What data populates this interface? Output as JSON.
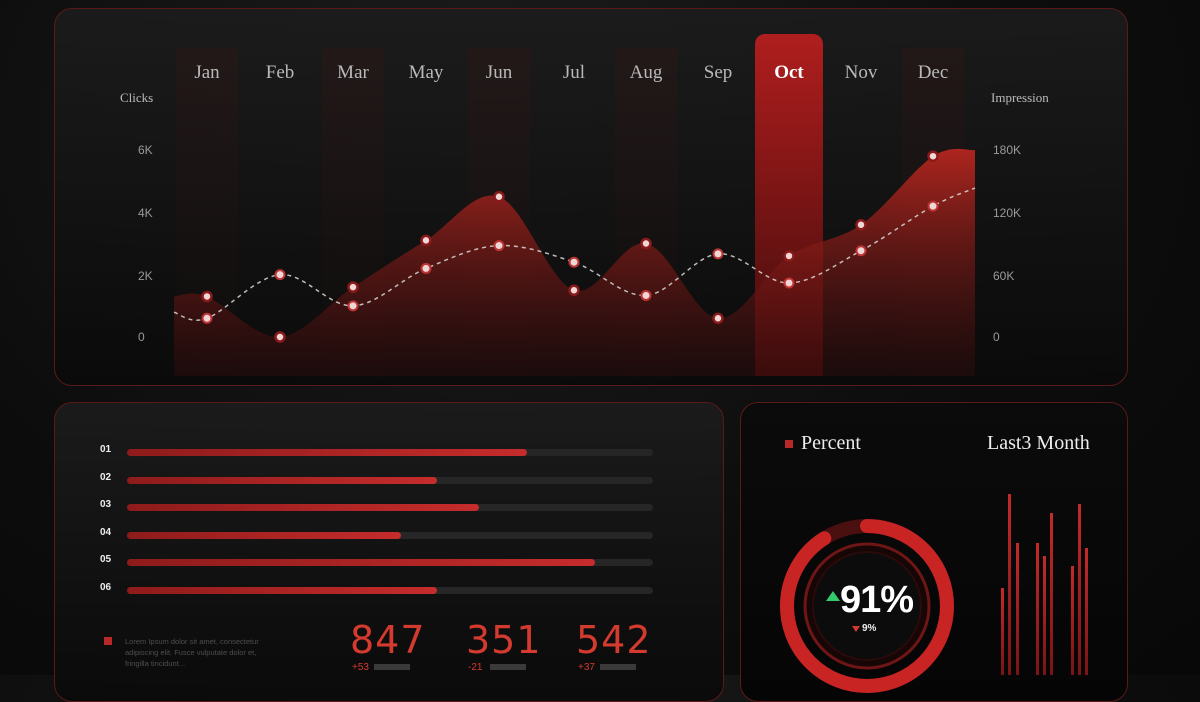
{
  "top_chart": {
    "months": [
      "Jan",
      "Feb",
      "Mar",
      "May",
      "Jun",
      "Jul",
      "Aug",
      "Sep",
      "Oct",
      "Nov",
      "Dec"
    ],
    "active_month": "Oct",
    "left_axis_label": "Clicks",
    "right_axis_label": "Impression",
    "left_ticks": [
      "6K",
      "4K",
      "2K",
      "0"
    ],
    "right_ticks": [
      "180K",
      "120K",
      "60K",
      "0"
    ]
  },
  "chart_data": {
    "type": "area",
    "categories": [
      "Jan",
      "Feb",
      "Mar",
      "May",
      "Jun",
      "Jul",
      "Aug",
      "Sep",
      "Oct",
      "Nov",
      "Dec"
    ],
    "series": [
      {
        "name": "Clicks",
        "axis": "left",
        "values": [
          1300,
          0,
          1600,
          3100,
          4500,
          1500,
          3000,
          600,
          2600,
          3600,
          5800
        ]
      },
      {
        "name": "Impression",
        "axis": "right",
        "values": [
          18000,
          60000,
          30000,
          66000,
          88000,
          72000,
          40000,
          80000,
          52000,
          83000,
          126000
        ]
      }
    ],
    "ylim_left": [
      0,
      6000
    ],
    "ylim_right": [
      0,
      180000
    ],
    "colors": {
      "area": "#b5261f",
      "line": "#d9d9d9",
      "accent": "#b01e1e"
    }
  },
  "progress_bars": [
    {
      "label": "01",
      "value": 0.76
    },
    {
      "label": "02",
      "value": 0.59
    },
    {
      "label": "03",
      "value": 0.67
    },
    {
      "label": "04",
      "value": 0.52
    },
    {
      "label": "05",
      "value": 0.89
    },
    {
      "label": "06",
      "value": 0.59
    }
  ],
  "lorem_text": "Lorem Ipsum dolor sit amet, consectetur adipiscing elit. Fusce vulputate dolor et, fringilla tincidunt...",
  "stats": [
    {
      "value": "847",
      "delta": "+53"
    },
    {
      "value": "351",
      "delta": "-21"
    },
    {
      "value": "542",
      "delta": "+37"
    }
  ],
  "percent_panel": {
    "legend_label": "Percent",
    "title": "Last3 Month",
    "gauge_value": 0.91,
    "big_label": "91%",
    "small_label": "9%"
  }
}
